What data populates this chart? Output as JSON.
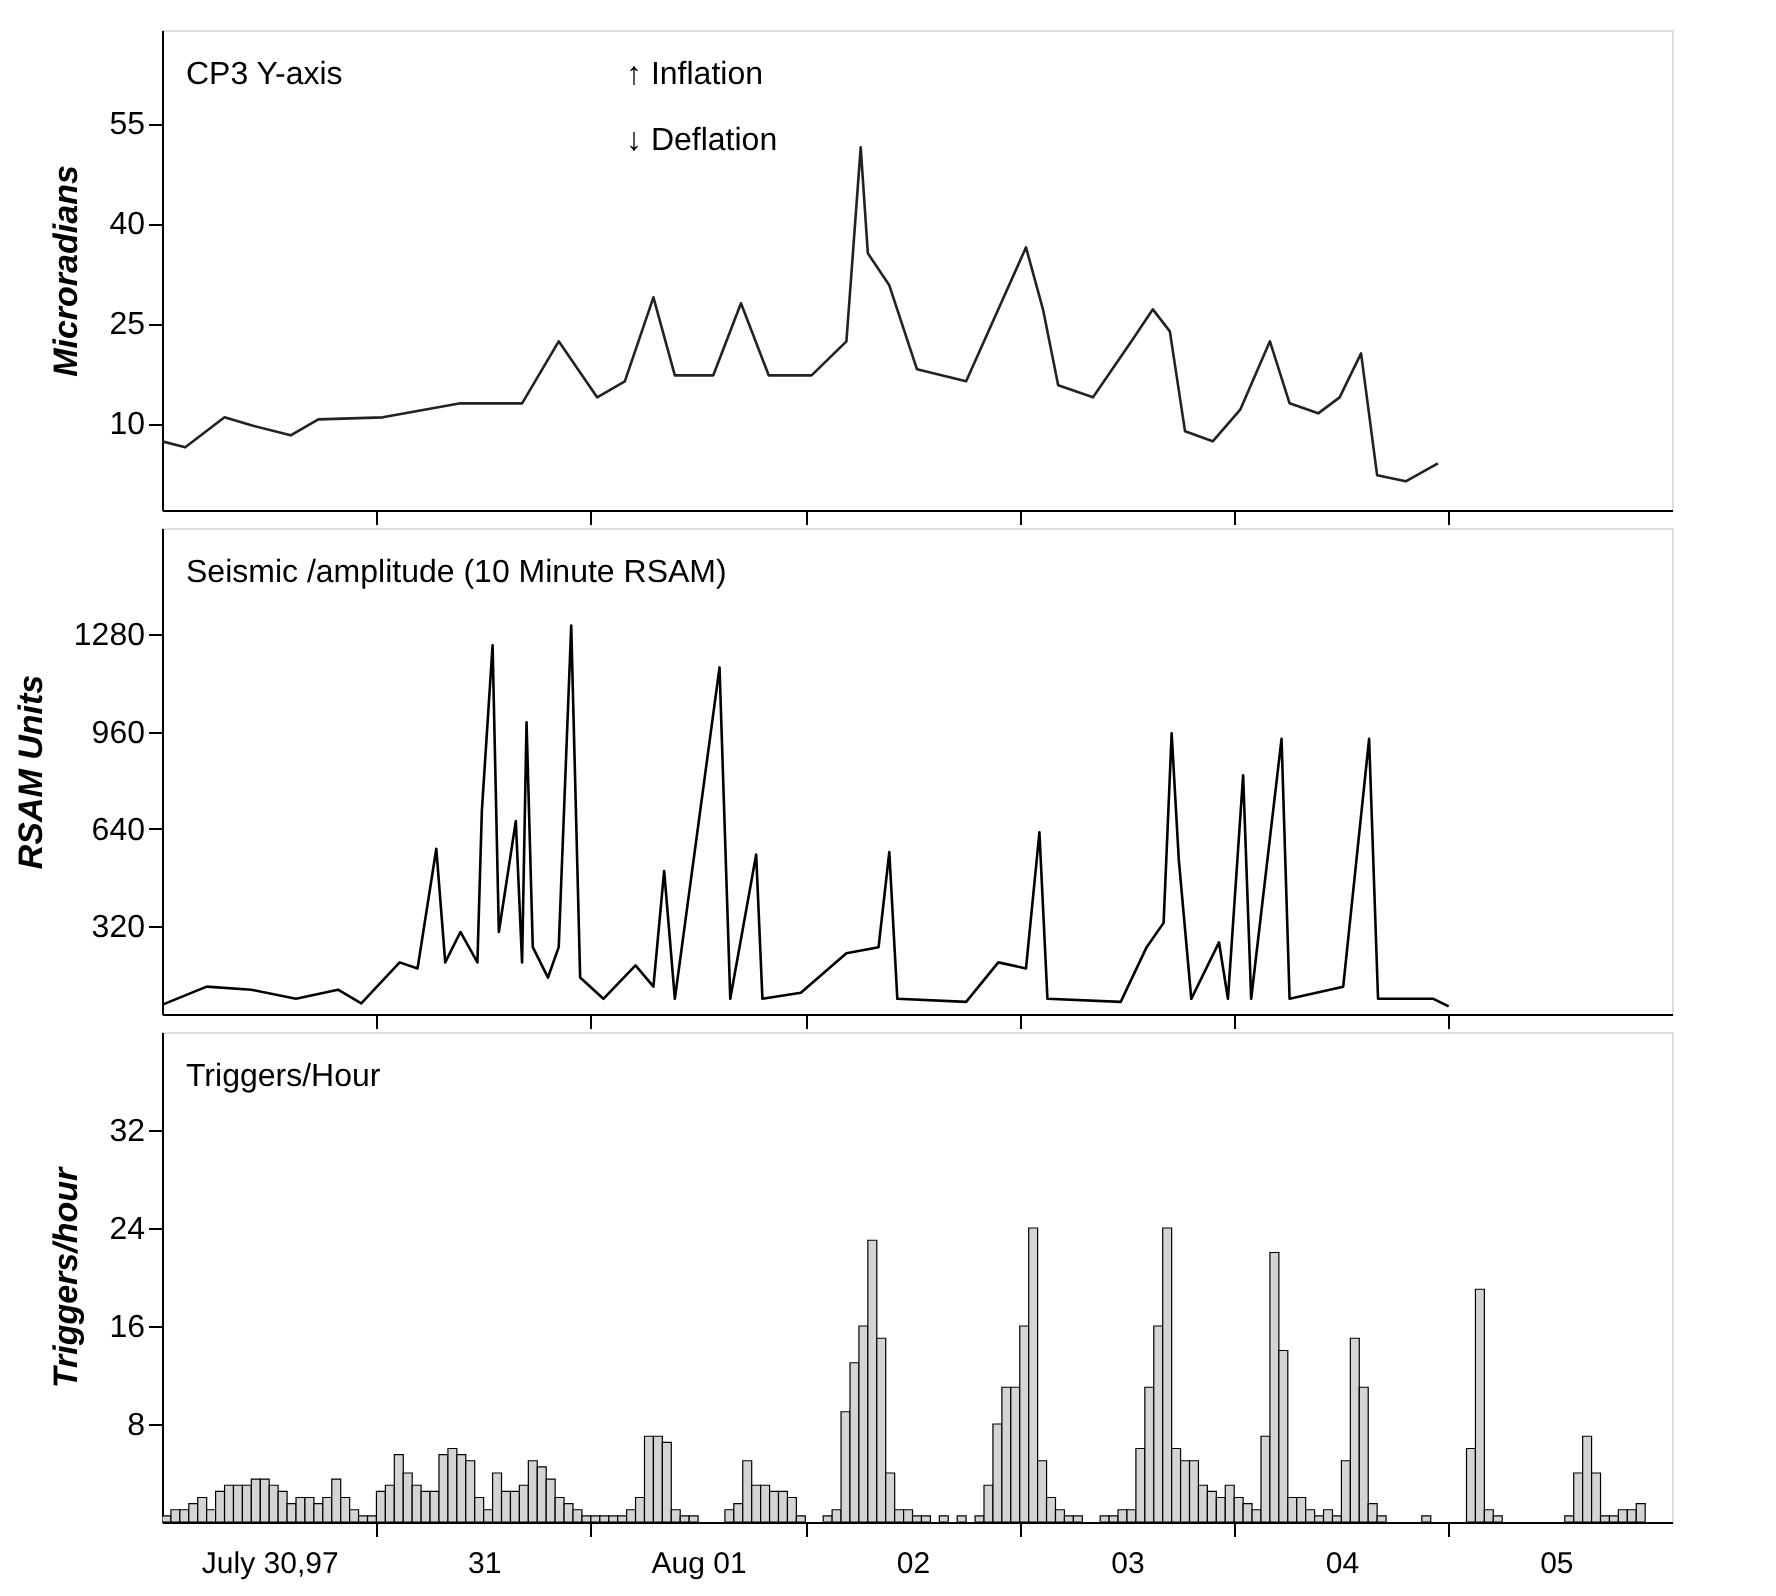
{
  "chart_data": [
    {
      "type": "line",
      "ylabel": "Microradians",
      "annotations": [
        "CP3 Y-axis",
        "↑ Inflation",
        "↓ Deflation"
      ],
      "x": [
        "1997-07-30T00:00",
        "1997-07-30T02:36",
        "1997-07-30T07:00",
        "1997-07-30T10:00",
        "1997-07-30T14:24",
        "1997-07-30T17:30",
        "1997-07-31T00:42",
        "1997-07-31T09:24",
        "1997-07-31T16:18",
        "1997-07-31T20:24",
        "1997-08-01T00:42",
        "1997-08-01T03:48",
        "1997-08-01T07:00",
        "1997-08-01T09:24",
        "1997-08-01T13:42",
        "1997-08-01T16:48",
        "1997-08-01T19:54",
        "1997-08-02T00:42",
        "1997-08-02T04:36",
        "1997-08-02T06:12",
        "1997-08-02T07:00",
        "1997-08-02T09:24",
        "1997-08-02T12:30",
        "1997-08-02T18:00",
        "1997-08-03T00:42",
        "1997-08-03T02:36",
        "1997-08-03T04:18",
        "1997-08-03T08:12",
        "1997-08-03T12:30",
        "1997-08-03T14:54",
        "1997-08-03T16:48",
        "1997-08-03T18:30",
        "1997-08-03T21:36",
        "1997-08-04T00:42",
        "1997-08-04T04:00",
        "1997-08-04T06:12",
        "1997-08-04T09:24",
        "1997-08-04T11:48",
        "1997-08-04T14:12",
        "1997-08-04T16:00",
        "1997-08-04T19:12",
        "1997-08-04T22:48"
      ],
      "series": [
        {
          "color": "#222222",
          "values": [
            7.3,
            6.4,
            10.9,
            9.7,
            8.2,
            10.6,
            10.9,
            13,
            13,
            22.3,
            13.9,
            16.3,
            28.9,
            17.2,
            17.2,
            28,
            17.2,
            17.2,
            22.3,
            51.4,
            35.5,
            30.7,
            18.1,
            16.3,
            36.4,
            27.1,
            15.7,
            13.9,
            22.3,
            27.1,
            23.8,
            8.8,
            7.3,
            12.1,
            22.3,
            13,
            11.5,
            13.9,
            20.5,
            2.2,
            1.3,
            4
          ]
        }
      ],
      "xlim": [
        "1997-07-30T00:00",
        "1997-08-06T01:00"
      ],
      "ylim": [
        -3,
        69
      ],
      "yticks": [
        10,
        25,
        40,
        55
      ],
      "xticks": [
        {
          "value": "1997-07-31T00:00",
          "label": null
        },
        {
          "value": "1997-08-01T00:00",
          "label": null
        },
        {
          "value": "1997-08-02T00:00",
          "label": null
        },
        {
          "value": "1997-08-03T00:00",
          "label": null
        },
        {
          "value": "1997-08-04T00:00",
          "label": null
        },
        {
          "value": "1997-08-05T00:00",
          "label": null
        }
      ],
      "tick_labels": "y",
      "grid": false
    },
    {
      "type": "line",
      "ylabel": "RSAM Units",
      "annotations": [
        "Seismic /amplitude (10 Minute RSAM)"
      ],
      "x": [
        "1997-07-30T00:00",
        "1997-07-30T05:00",
        "1997-07-30T10:00",
        "1997-07-30T15:00",
        "1997-07-30T19:42",
        "1997-07-30T22:18",
        "1997-07-31T02:36",
        "1997-07-31T04:36",
        "1997-07-31T06:42",
        "1997-07-31T07:42",
        "1997-07-31T09:24",
        "1997-07-31T11:18",
        "1997-07-31T11:48",
        "1997-07-31T13:00",
        "1997-07-31T13:42",
        "1997-07-31T15:36",
        "1997-07-31T16:18",
        "1997-07-31T16:48",
        "1997-07-31T17:30",
        "1997-07-31T19:12",
        "1997-07-31T20:24",
        "1997-07-31T21:48",
        "1997-07-31T22:48",
        "1997-08-01T01:24",
        "1997-08-01T05:00",
        "1997-08-01T07:00",
        "1997-08-01T08:12",
        "1997-08-01T09:24",
        "1997-08-01T14:24",
        "1997-08-01T15:36",
        "1997-08-01T18:30",
        "1997-08-01T19:12",
        "1997-08-01T23:30",
        "1997-08-02T04:36",
        "1997-08-02T08:12",
        "1997-08-02T09:24",
        "1997-08-02T10:18",
        "1997-08-02T18:00",
        "1997-08-02T21:36",
        "1997-08-03T00:42",
        "1997-08-03T02:12",
        "1997-08-03T03:06",
        "1997-08-03T11:18",
        "1997-08-03T14:12",
        "1997-08-03T16:06",
        "1997-08-03T17:00",
        "1997-08-03T17:48",
        "1997-08-03T19:12",
        "1997-08-03T22:18",
        "1997-08-03T23:18",
        "1997-08-04T01:00",
        "1997-08-04T01:54",
        "1997-08-04T05:18",
        "1997-08-04T06:12",
        "1997-08-04T12:12",
        "1997-08-04T15:06",
        "1997-08-04T16:06",
        "1997-08-04T22:18",
        "1997-08-05T00:00"
      ],
      "series": [
        {
          "color": "#000000",
          "values": [
            60,
            120,
            110,
            80,
            110,
            65,
            200,
            180,
            574,
            200,
            300,
            200,
            700,
            1244,
            300,
            665,
            200,
            990,
            250,
            150,
            250,
            1309,
            150,
            80,
            190,
            120,
            501,
            80,
            1171,
            80,
            555,
            80,
            100,
            230,
            250,
            563,
            80,
            70,
            200,
            180,
            628,
            80,
            70,
            250,
            330,
            954,
            538,
            80,
            266,
            80,
            816,
            80,
            936,
            80,
            120,
            936,
            80,
            80,
            55
          ]
        }
      ],
      "xlim": [
        "1997-07-30T00:00",
        "1997-08-06T01:00"
      ],
      "ylim": [
        30,
        1630
      ],
      "yticks": [
        320,
        640,
        960,
        1280
      ],
      "xticks": [
        {
          "value": "1997-07-31T00:00",
          "label": null
        },
        {
          "value": "1997-08-01T00:00",
          "label": null
        },
        {
          "value": "1997-08-02T00:00",
          "label": null
        },
        {
          "value": "1997-08-03T00:00",
          "label": null
        },
        {
          "value": "1997-08-04T00:00",
          "label": null
        },
        {
          "value": "1997-08-05T00:00",
          "label": null
        }
      ],
      "tick_labels": "y",
      "grid": false
    },
    {
      "type": "histogram",
      "ylabel": "Triggers/hour",
      "annotations": [
        "Triggers/Hour"
      ],
      "color": "#d4d4d4",
      "bins": [
        "1997-07-30T00:00",
        "1997-07-30T01:00",
        "1997-07-30T02:00",
        "1997-07-30T03:00",
        "1997-07-30T04:00",
        "1997-07-30T05:00",
        "1997-07-30T06:00",
        "1997-07-30T07:00",
        "1997-07-30T08:00",
        "1997-07-30T09:00",
        "1997-07-30T10:00",
        "1997-07-30T11:00",
        "1997-07-30T12:00",
        "1997-07-30T13:00",
        "1997-07-30T14:00",
        "1997-07-30T15:00",
        "1997-07-30T16:00",
        "1997-07-30T17:00",
        "1997-07-30T18:00",
        "1997-07-30T19:00",
        "1997-07-30T20:00",
        "1997-07-30T21:00",
        "1997-07-30T22:00",
        "1997-07-30T23:00",
        "1997-07-31T00:00",
        "1997-07-31T01:00",
        "1997-07-31T02:00",
        "1997-07-31T03:00",
        "1997-07-31T04:00",
        "1997-07-31T05:00",
        "1997-07-31T06:00",
        "1997-07-31T07:00",
        "1997-07-31T08:00",
        "1997-07-31T09:00",
        "1997-07-31T10:00",
        "1997-07-31T11:00",
        "1997-07-31T12:00",
        "1997-07-31T13:00",
        "1997-07-31T14:00",
        "1997-07-31T15:00",
        "1997-07-31T16:00",
        "1997-07-31T17:00",
        "1997-07-31T18:00",
        "1997-07-31T19:00",
        "1997-07-31T20:00",
        "1997-07-31T21:00",
        "1997-07-31T22:00",
        "1997-07-31T23:00",
        "1997-08-01T00:00",
        "1997-08-01T01:00",
        "1997-08-01T02:00",
        "1997-08-01T03:00",
        "1997-08-01T04:00",
        "1997-08-01T05:00",
        "1997-08-01T06:00",
        "1997-08-01T07:00",
        "1997-08-01T08:00",
        "1997-08-01T09:00",
        "1997-08-01T10:00",
        "1997-08-01T11:00",
        "1997-08-01T12:00",
        "1997-08-01T13:00",
        "1997-08-01T14:00",
        "1997-08-01T15:00",
        "1997-08-01T16:00",
        "1997-08-01T17:00",
        "1997-08-01T18:00",
        "1997-08-01T19:00",
        "1997-08-01T20:00",
        "1997-08-01T21:00",
        "1997-08-01T22:00",
        "1997-08-01T23:00",
        "1997-08-02T00:00",
        "1997-08-02T01:00",
        "1997-08-02T02:00",
        "1997-08-02T03:00",
        "1997-08-02T04:00",
        "1997-08-02T05:00",
        "1997-08-02T06:00",
        "1997-08-02T07:00",
        "1997-08-02T08:00",
        "1997-08-02T09:00",
        "1997-08-02T10:00",
        "1997-08-02T11:00",
        "1997-08-02T12:00",
        "1997-08-02T13:00",
        "1997-08-02T14:00",
        "1997-08-02T15:00",
        "1997-08-02T16:00",
        "1997-08-02T17:00",
        "1997-08-02T18:00",
        "1997-08-02T19:00",
        "1997-08-02T20:00",
        "1997-08-02T21:00",
        "1997-08-02T22:00",
        "1997-08-02T23:00",
        "1997-08-03T00:00",
        "1997-08-03T01:00",
        "1997-08-03T02:00",
        "1997-08-03T03:00",
        "1997-08-03T04:00",
        "1997-08-03T05:00",
        "1997-08-03T06:00",
        "1997-08-03T07:00",
        "1997-08-03T08:00",
        "1997-08-03T09:00",
        "1997-08-03T10:00",
        "1997-08-03T11:00",
        "1997-08-03T12:00",
        "1997-08-03T13:00",
        "1997-08-03T14:00",
        "1997-08-03T15:00",
        "1997-08-03T16:00",
        "1997-08-03T17:00",
        "1997-08-03T18:00",
        "1997-08-03T19:00",
        "1997-08-03T20:00",
        "1997-08-03T21:00",
        "1997-08-03T22:00",
        "1997-08-03T23:00",
        "1997-08-04T00:00",
        "1997-08-04T01:00",
        "1997-08-04T02:00",
        "1997-08-04T03:00",
        "1997-08-04T04:00",
        "1997-08-04T05:00",
        "1997-08-04T06:00",
        "1997-08-04T07:00",
        "1997-08-04T08:00",
        "1997-08-04T09:00",
        "1997-08-04T10:00",
        "1997-08-04T11:00",
        "1997-08-04T12:00",
        "1997-08-04T13:00",
        "1997-08-04T14:00",
        "1997-08-04T15:00",
        "1997-08-04T16:00",
        "1997-08-04T17:00",
        "1997-08-04T18:00",
        "1997-08-04T19:00",
        "1997-08-04T20:00",
        "1997-08-04T21:00",
        "1997-08-04T22:00",
        "1997-08-04T23:00",
        "1997-08-05T00:00",
        "1997-08-05T01:00",
        "1997-08-05T02:00",
        "1997-08-05T03:00",
        "1997-08-05T04:00",
        "1997-08-05T05:00",
        "1997-08-05T06:00",
        "1997-08-05T07:00",
        "1997-08-05T08:00",
        "1997-08-05T09:00",
        "1997-08-05T10:00",
        "1997-08-05T11:00",
        "1997-08-05T12:00",
        "1997-08-05T13:00",
        "1997-08-05T14:00",
        "1997-08-05T15:00",
        "1997-08-05T16:00",
        "1997-08-05T17:00",
        "1997-08-05T18:00",
        "1997-08-05T19:00",
        "1997-08-05T20:00",
        "1997-08-05T21:00",
        "1997-08-05T22:00"
      ],
      "values": [
        0.5,
        1,
        1,
        1.5,
        2,
        1,
        2.5,
        3,
        3,
        3,
        3.5,
        3.5,
        3,
        2.5,
        1.5,
        2,
        2,
        1.5,
        2,
        3.5,
        2,
        1,
        0.5,
        0.5,
        2.5,
        3,
        5.5,
        4,
        3,
        2.5,
        2.5,
        5.5,
        6,
        5.5,
        5,
        2,
        1,
        4,
        2.5,
        2.5,
        3,
        5,
        4.5,
        3.5,
        2,
        1.5,
        1,
        0.5,
        0.5,
        0.5,
        0.5,
        0.5,
        1,
        2,
        7,
        7,
        6.5,
        1,
        0.5,
        0.5,
        0,
        0,
        0,
        1,
        1.5,
        5,
        3,
        3,
        2.5,
        2.5,
        2,
        0.5,
        0,
        0,
        0.5,
        1,
        9,
        13,
        16,
        23,
        15,
        4,
        1,
        1,
        0.5,
        0.5,
        0,
        0.5,
        0,
        0.5,
        0,
        0.5,
        3,
        8,
        11,
        11,
        16,
        24,
        5,
        2,
        1,
        0.5,
        0.5,
        0,
        0,
        0.5,
        0.5,
        1,
        1,
        6,
        11,
        16,
        24,
        6,
        5,
        5,
        3,
        2.5,
        2,
        3,
        2,
        1.5,
        1,
        7,
        22,
        14,
        2,
        2,
        1,
        0.5,
        1,
        0.5,
        5,
        15,
        11,
        1.5,
        0.5,
        0,
        0,
        0,
        0,
        0.5,
        0,
        0,
        0,
        0,
        6,
        19,
        1,
        0.5,
        0,
        0,
        0,
        0,
        0,
        0,
        0,
        0.5,
        4,
        7,
        4,
        0.5,
        0.5,
        1,
        1,
        1.5
      ],
      "xlim": [
        "1997-07-30T00:00",
        "1997-08-06T01:00"
      ],
      "ylim": [
        0,
        40
      ],
      "yticks": [
        8,
        16,
        24,
        32
      ],
      "xticks": [
        {
          "value": "1997-07-30T12:00",
          "label": "July 30,97"
        },
        {
          "value": "1997-07-31T00:00",
          "label": null
        },
        {
          "value": "1997-07-31T12:00",
          "label": "31"
        },
        {
          "value": "1997-08-01T00:00",
          "label": null
        },
        {
          "value": "1997-08-01T12:00",
          "label": "Aug 01"
        },
        {
          "value": "1997-08-02T00:00",
          "label": null
        },
        {
          "value": "1997-08-02T12:00",
          "label": "02"
        },
        {
          "value": "1997-08-03T00:00",
          "label": null
        },
        {
          "value": "1997-08-03T12:00",
          "label": "03"
        },
        {
          "value": "1997-08-04T00:00",
          "label": null
        },
        {
          "value": "1997-08-04T12:00",
          "label": "04"
        },
        {
          "value": "1997-08-05T00:00",
          "label": null
        },
        {
          "value": "1997-08-05T12:00",
          "label": "05"
        }
      ],
      "grid": false
    }
  ]
}
